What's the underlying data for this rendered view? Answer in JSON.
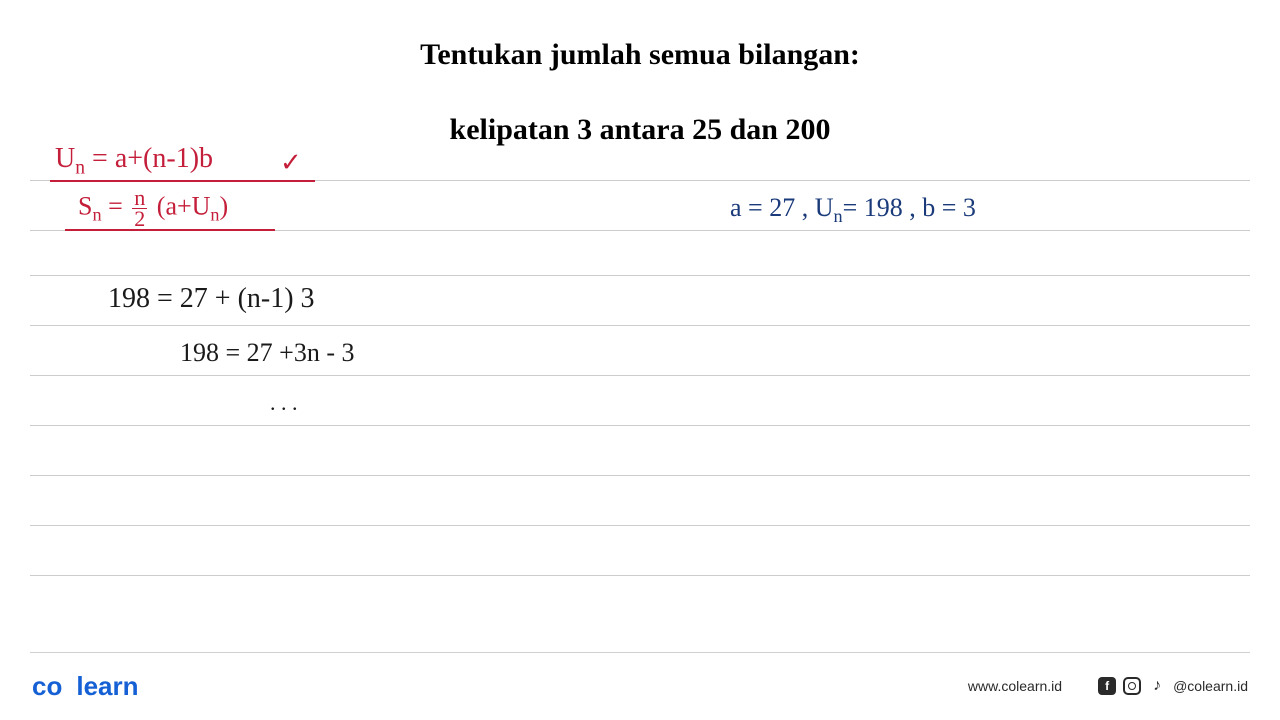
{
  "title": {
    "line1": "Tentukan jumlah semua bilangan:",
    "line2": "kelipatan 3 antara 25 dan 200"
  },
  "formulas": {
    "red1_un": "U",
    "red1_sub": "n",
    "red1_rest": " = a+(n-1)b",
    "checkmark": "✓",
    "red2_sn": "S",
    "red2_sub": "n",
    "red2_eq": " = ",
    "red2_frac_top": "n",
    "red2_frac_bot": "2",
    "red2_rest": " (a+U",
    "red2_rest_sub": "n",
    "red2_close": ")"
  },
  "variables": {
    "blue_text_a": "a = 27  , U",
    "blue_sub": "n",
    "blue_text_rest": "= 198  , b = 3"
  },
  "equations": {
    "eq1": "198 = 27 + (n-1) 3",
    "eq2": "198 = 27 +3n - 3",
    "dots": ".  .   ."
  },
  "footer": {
    "logo_1": "co",
    "logo_2": "learn",
    "url": "www.colearn.id",
    "handle": "@colearn.id"
  },
  "colors": {
    "red": "#c41e3a",
    "blue": "#1a3a7a",
    "black": "#1a1a1a",
    "logo_blue": "#1560d4",
    "line_gray": "#cccccc"
  }
}
